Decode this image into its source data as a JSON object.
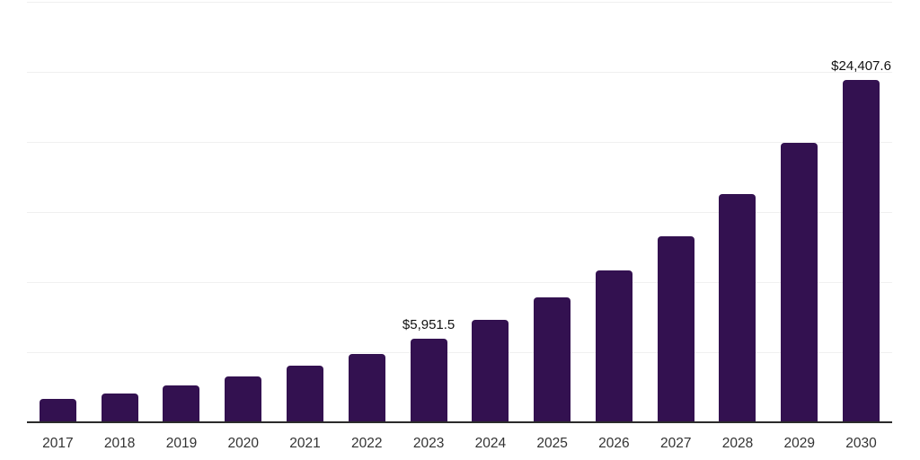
{
  "chart_data": {
    "type": "bar",
    "title": "",
    "xlabel": "",
    "ylabel": "",
    "categories": [
      "2017",
      "2018",
      "2019",
      "2020",
      "2021",
      "2022",
      "2023",
      "2024",
      "2025",
      "2026",
      "2027",
      "2028",
      "2029",
      "2030"
    ],
    "values": [
      1650,
      2070,
      2640,
      3260,
      4010,
      4900,
      5951.5,
      7310,
      8910,
      10830,
      13260,
      16310,
      19930,
      24407.6
    ],
    "point_labels": [
      {
        "category": "2023",
        "text": "$5,951.5"
      },
      {
        "category": "2030",
        "text": "$24,407.6"
      }
    ],
    "ylim": [
      0,
      30000
    ],
    "gridline_count": 7,
    "grid_on": true,
    "legend_position": "none",
    "bar_color": "#331150",
    "gridline_color": "#f0f0f0",
    "axis_line_color": "#2b2b2b",
    "tick_label_color": "#333333",
    "data_label_color": "#111111"
  }
}
